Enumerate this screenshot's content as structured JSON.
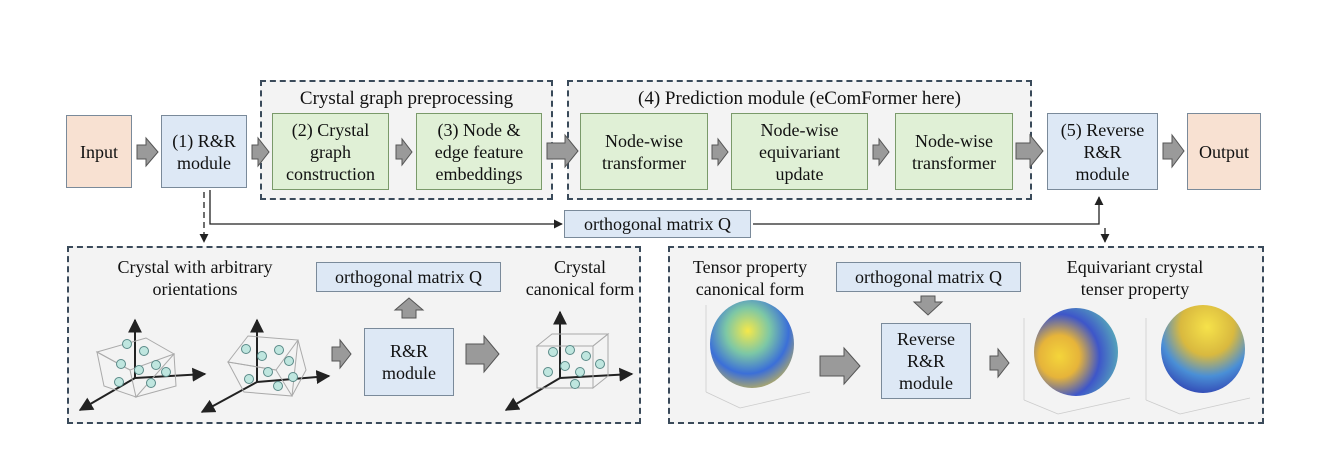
{
  "top": {
    "input": "Input",
    "rr_module": "(1) R&R\nmodule",
    "preprocessing_title": "Crystal graph preprocessing",
    "graph_construction": "(2) Crystal\ngraph\nconstruction",
    "feature_embeddings": "(3) Node &\nedge feature\nembeddings",
    "prediction_title": "(4) Prediction module (eComFormer here)",
    "transformer1": "Node-wise\ntransformer",
    "equivariant_update": "Node-wise\nequivariant\nupdate",
    "transformer2": "Node-wise\ntransformer",
    "reverse_rr": "(5) Reverse\nR&R\nmodule",
    "output": "Output",
    "orthogonal_q": "orthogonal matrix Q"
  },
  "left_panel": {
    "arbitrary_label": "Crystal with arbitrary\norientations",
    "orthogonal_q": "orthogonal matrix Q",
    "canonical_label": "Crystal\ncanonical form",
    "rr_module": "R&R\nmodule"
  },
  "right_panel": {
    "tensor_canonical": "Tensor property\ncanonical form",
    "orthogonal_q": "orthogonal matrix Q",
    "equivariant_label": "Equivariant crystal\ntenser property",
    "reverse_rr": "Reverse\nR&R\nmodule"
  },
  "colors": {
    "peach": "#f8e1d2",
    "blue": "#dde8f5",
    "green": "#e0f0d6",
    "arrow_fill": "#9a9a9a"
  }
}
